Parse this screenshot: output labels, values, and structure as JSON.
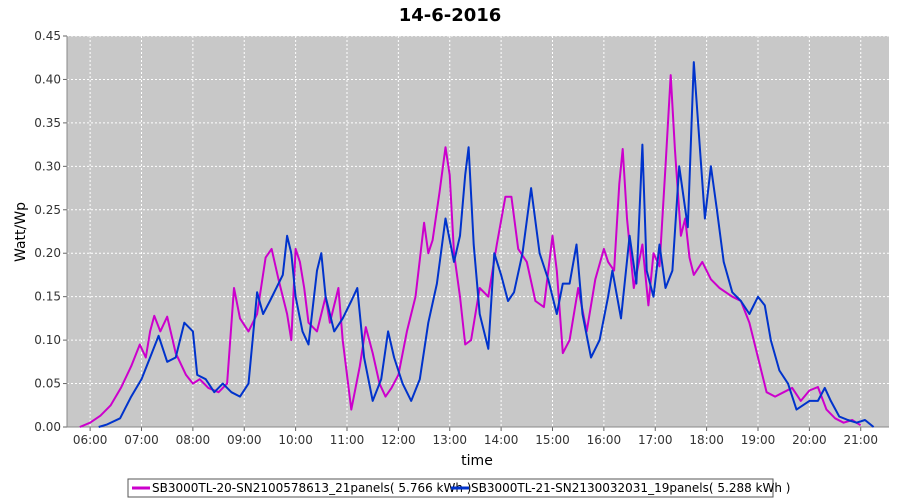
{
  "chart_data": {
    "type": "line",
    "title": "14-6-2016",
    "xlabel": "time",
    "ylabel": "Watt/Wp",
    "xlim": [
      "05:33",
      "21:33"
    ],
    "ylim": [
      0,
      0.45
    ],
    "xticks": [
      "06:00",
      "07:00",
      "08:00",
      "09:00",
      "10:00",
      "11:00",
      "12:00",
      "13:00",
      "14:00",
      "15:00",
      "16:00",
      "17:00",
      "18:00",
      "19:00",
      "20:00",
      "21:00"
    ],
    "yticks": [
      "0.00",
      "0.05",
      "0.10",
      "0.15",
      "0.20",
      "0.25",
      "0.30",
      "0.35",
      "0.40",
      "0.45"
    ],
    "grid": true,
    "legend_position": "bottom",
    "background_color": "#c8c8c8",
    "series": [
      {
        "name": "SB3000TL-20-SN2100578613_21panels( 5.766 kWh )",
        "color": "#cc00cc",
        "points": [
          [
            "05:48",
            0.0
          ],
          [
            "06:00",
            0.005
          ],
          [
            "06:12",
            0.013
          ],
          [
            "06:24",
            0.025
          ],
          [
            "06:36",
            0.045
          ],
          [
            "06:48",
            0.07
          ],
          [
            "06:58",
            0.095
          ],
          [
            "07:05",
            0.08
          ],
          [
            "07:10",
            0.11
          ],
          [
            "07:15",
            0.128
          ],
          [
            "07:22",
            0.11
          ],
          [
            "07:30",
            0.127
          ],
          [
            "07:40",
            0.085
          ],
          [
            "07:52",
            0.06
          ],
          [
            "08:00",
            0.05
          ],
          [
            "08:08",
            0.055
          ],
          [
            "08:18",
            0.045
          ],
          [
            "08:30",
            0.04
          ],
          [
            "08:40",
            0.05
          ],
          [
            "08:48",
            0.16
          ],
          [
            "08:55",
            0.125
          ],
          [
            "09:05",
            0.11
          ],
          [
            "09:15",
            0.13
          ],
          [
            "09:25",
            0.195
          ],
          [
            "09:32",
            0.205
          ],
          [
            "09:40",
            0.17
          ],
          [
            "09:50",
            0.13
          ],
          [
            "09:55",
            0.1
          ],
          [
            "10:00",
            0.205
          ],
          [
            "10:05",
            0.19
          ],
          [
            "10:10",
            0.16
          ],
          [
            "10:15",
            0.12
          ],
          [
            "10:25",
            0.11
          ],
          [
            "10:35",
            0.15
          ],
          [
            "10:40",
            0.12
          ],
          [
            "10:50",
            0.16
          ],
          [
            "10:55",
            0.1
          ],
          [
            "11:00",
            0.06
          ],
          [
            "11:05",
            0.02
          ],
          [
            "11:15",
            0.07
          ],
          [
            "11:22",
            0.115
          ],
          [
            "11:30",
            0.085
          ],
          [
            "11:38",
            0.05
          ],
          [
            "11:45",
            0.035
          ],
          [
            "11:52",
            0.045
          ],
          [
            "12:00",
            0.06
          ],
          [
            "12:10",
            0.11
          ],
          [
            "12:20",
            0.15
          ],
          [
            "12:30",
            0.235
          ],
          [
            "12:35",
            0.2
          ],
          [
            "12:40",
            0.215
          ],
          [
            "12:48",
            0.27
          ],
          [
            "12:55",
            0.322
          ],
          [
            "13:00",
            0.29
          ],
          [
            "13:05",
            0.2
          ],
          [
            "13:12",
            0.15
          ],
          [
            "13:18",
            0.095
          ],
          [
            "13:25",
            0.1
          ],
          [
            "13:35",
            0.16
          ],
          [
            "13:45",
            0.15
          ],
          [
            "13:55",
            0.21
          ],
          [
            "14:05",
            0.265
          ],
          [
            "14:12",
            0.265
          ],
          [
            "14:20",
            0.205
          ],
          [
            "14:30",
            0.19
          ],
          [
            "14:40",
            0.145
          ],
          [
            "14:50",
            0.138
          ],
          [
            "15:00",
            0.22
          ],
          [
            "15:05",
            0.18
          ],
          [
            "15:12",
            0.085
          ],
          [
            "15:20",
            0.1
          ],
          [
            "15:30",
            0.16
          ],
          [
            "15:40",
            0.11
          ],
          [
            "15:50",
            0.17
          ],
          [
            "16:00",
            0.205
          ],
          [
            "16:05",
            0.19
          ],
          [
            "16:12",
            0.18
          ],
          [
            "16:18",
            0.28
          ],
          [
            "16:22",
            0.32
          ],
          [
            "16:27",
            0.24
          ],
          [
            "16:35",
            0.16
          ],
          [
            "16:45",
            0.21
          ],
          [
            "16:52",
            0.14
          ],
          [
            "16:58",
            0.2
          ],
          [
            "17:05",
            0.185
          ],
          [
            "17:12",
            0.3
          ],
          [
            "17:18",
            0.405
          ],
          [
            "17:23",
            0.32
          ],
          [
            "17:30",
            0.22
          ],
          [
            "17:35",
            0.24
          ],
          [
            "17:40",
            0.195
          ],
          [
            "17:45",
            0.175
          ],
          [
            "17:55",
            0.19
          ],
          [
            "18:05",
            0.17
          ],
          [
            "18:15",
            0.16
          ],
          [
            "18:30",
            0.15
          ],
          [
            "18:40",
            0.145
          ],
          [
            "18:50",
            0.12
          ],
          [
            "19:00",
            0.08
          ],
          [
            "19:10",
            0.04
          ],
          [
            "19:20",
            0.035
          ],
          [
            "19:30",
            0.04
          ],
          [
            "19:40",
            0.045
          ],
          [
            "19:50",
            0.03
          ],
          [
            "20:00",
            0.042
          ],
          [
            "20:10",
            0.046
          ],
          [
            "20:20",
            0.02
          ],
          [
            "20:30",
            0.01
          ],
          [
            "20:40",
            0.005
          ],
          [
            "20:50",
            0.008
          ],
          [
            "21:00",
            0.002
          ]
        ]
      },
      {
        "name": "SB3000TL-21-SN2130032031_19panels( 5.288 kWh )",
        "color": "#0033cc",
        "points": [
          [
            "06:10",
            0.0
          ],
          [
            "06:20",
            0.003
          ],
          [
            "06:35",
            0.01
          ],
          [
            "06:48",
            0.035
          ],
          [
            "07:00",
            0.055
          ],
          [
            "07:10",
            0.08
          ],
          [
            "07:20",
            0.105
          ],
          [
            "07:30",
            0.075
          ],
          [
            "07:40",
            0.08
          ],
          [
            "07:50",
            0.12
          ],
          [
            "08:00",
            0.11
          ],
          [
            "08:05",
            0.06
          ],
          [
            "08:15",
            0.055
          ],
          [
            "08:25",
            0.04
          ],
          [
            "08:35",
            0.05
          ],
          [
            "08:45",
            0.04
          ],
          [
            "08:55",
            0.035
          ],
          [
            "09:05",
            0.05
          ],
          [
            "09:15",
            0.155
          ],
          [
            "09:22",
            0.13
          ],
          [
            "09:30",
            0.145
          ],
          [
            "09:45",
            0.175
          ],
          [
            "09:50",
            0.22
          ],
          [
            "09:55",
            0.2
          ],
          [
            "10:00",
            0.15
          ],
          [
            "10:08",
            0.11
          ],
          [
            "10:15",
            0.095
          ],
          [
            "10:25",
            0.18
          ],
          [
            "10:30",
            0.2
          ],
          [
            "10:35",
            0.15
          ],
          [
            "10:45",
            0.11
          ],
          [
            "10:55",
            0.125
          ],
          [
            "11:05",
            0.145
          ],
          [
            "11:12",
            0.16
          ],
          [
            "11:20",
            0.08
          ],
          [
            "11:30",
            0.03
          ],
          [
            "11:40",
            0.055
          ],
          [
            "11:48",
            0.11
          ],
          [
            "11:55",
            0.08
          ],
          [
            "12:05",
            0.05
          ],
          [
            "12:15",
            0.03
          ],
          [
            "12:25",
            0.055
          ],
          [
            "12:35",
            0.12
          ],
          [
            "12:45",
            0.165
          ],
          [
            "12:55",
            0.24
          ],
          [
            "13:05",
            0.19
          ],
          [
            "13:12",
            0.22
          ],
          [
            "13:18",
            0.29
          ],
          [
            "13:22",
            0.322
          ],
          [
            "13:28",
            0.21
          ],
          [
            "13:35",
            0.13
          ],
          [
            "13:45",
            0.09
          ],
          [
            "13:52",
            0.2
          ],
          [
            "14:00",
            0.175
          ],
          [
            "14:08",
            0.145
          ],
          [
            "14:15",
            0.155
          ],
          [
            "14:25",
            0.2
          ],
          [
            "14:35",
            0.275
          ],
          [
            "14:45",
            0.2
          ],
          [
            "14:55",
            0.17
          ],
          [
            "15:05",
            0.13
          ],
          [
            "15:12",
            0.165
          ],
          [
            "15:20",
            0.165
          ],
          [
            "15:28",
            0.21
          ],
          [
            "15:35",
            0.13
          ],
          [
            "15:45",
            0.08
          ],
          [
            "15:55",
            0.1
          ],
          [
            "16:05",
            0.15
          ],
          [
            "16:10",
            0.18
          ],
          [
            "16:20",
            0.125
          ],
          [
            "16:30",
            0.22
          ],
          [
            "16:38",
            0.165
          ],
          [
            "16:45",
            0.325
          ],
          [
            "16:50",
            0.18
          ],
          [
            "16:58",
            0.15
          ],
          [
            "17:05",
            0.21
          ],
          [
            "17:12",
            0.16
          ],
          [
            "17:20",
            0.18
          ],
          [
            "17:28",
            0.3
          ],
          [
            "17:38",
            0.23
          ],
          [
            "17:45",
            0.42
          ],
          [
            "17:50",
            0.35
          ],
          [
            "17:58",
            0.24
          ],
          [
            "18:05",
            0.3
          ],
          [
            "18:12",
            0.25
          ],
          [
            "18:20",
            0.19
          ],
          [
            "18:30",
            0.155
          ],
          [
            "18:40",
            0.145
          ],
          [
            "18:50",
            0.13
          ],
          [
            "19:00",
            0.15
          ],
          [
            "19:08",
            0.14
          ],
          [
            "19:15",
            0.1
          ],
          [
            "19:25",
            0.065
          ],
          [
            "19:35",
            0.05
          ],
          [
            "19:45",
            0.02
          ],
          [
            "20:00",
            0.03
          ],
          [
            "20:10",
            0.03
          ],
          [
            "20:18",
            0.045
          ],
          [
            "20:25",
            0.03
          ],
          [
            "20:35",
            0.012
          ],
          [
            "20:45",
            0.008
          ],
          [
            "20:55",
            0.005
          ],
          [
            "21:05",
            0.008
          ],
          [
            "21:15",
            0.0
          ]
        ]
      }
    ]
  }
}
